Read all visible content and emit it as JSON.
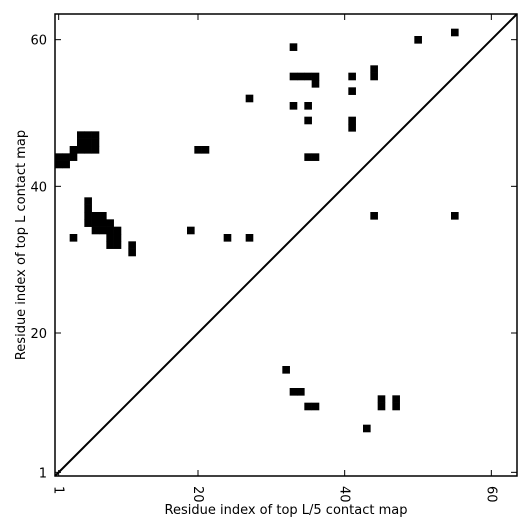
{
  "chart_data": {
    "type": "heatmap",
    "title": "",
    "xlabel": "Residue index of top L/5 contact map",
    "ylabel": "Residue index of top L contact map",
    "xlim": [
      0.5,
      63.5
    ],
    "ylim": [
      0.5,
      63.5
    ],
    "xticks": [
      1,
      20,
      40,
      60
    ],
    "yticks": [
      1,
      20,
      40,
      60
    ],
    "grid": false,
    "diagonal_line": true,
    "cell_color": "#000000",
    "background_color": "#ffffff",
    "cells": [
      [
        33,
        59
      ],
      [
        50,
        60
      ],
      [
        55,
        61
      ],
      [
        33,
        55
      ],
      [
        34,
        55
      ],
      [
        35,
        55
      ],
      [
        36,
        55
      ],
      [
        36,
        54
      ],
      [
        41,
        55
      ],
      [
        44,
        56
      ],
      [
        44,
        55
      ],
      [
        41,
        53
      ],
      [
        27,
        52
      ],
      [
        33,
        51
      ],
      [
        35,
        51
      ],
      [
        35,
        49
      ],
      [
        41,
        49
      ],
      [
        41,
        48
      ],
      [
        4,
        47
      ],
      [
        5,
        47
      ],
      [
        6,
        47
      ],
      [
        4,
        46
      ],
      [
        5,
        46
      ],
      [
        6,
        46
      ],
      [
        3,
        45
      ],
      [
        4,
        45
      ],
      [
        5,
        45
      ],
      [
        6,
        45
      ],
      [
        2,
        44
      ],
      [
        3,
        44
      ],
      [
        1,
        44
      ],
      [
        1,
        43
      ],
      [
        2,
        43
      ],
      [
        20,
        45
      ],
      [
        21,
        45
      ],
      [
        35,
        44
      ],
      [
        36,
        44
      ],
      [
        5,
        38
      ],
      [
        5,
        37
      ],
      [
        5,
        36
      ],
      [
        6,
        36
      ],
      [
        7,
        36
      ],
      [
        5,
        35
      ],
      [
        6,
        35
      ],
      [
        7,
        35
      ],
      [
        8,
        35
      ],
      [
        6,
        34
      ],
      [
        7,
        34
      ],
      [
        8,
        34
      ],
      [
        9,
        34
      ],
      [
        8,
        33
      ],
      [
        9,
        33
      ],
      [
        8,
        32
      ],
      [
        9,
        32
      ],
      [
        11,
        32
      ],
      [
        11,
        31
      ],
      [
        44,
        36
      ],
      [
        55,
        36
      ],
      [
        3,
        33
      ],
      [
        19,
        34
      ],
      [
        24,
        33
      ],
      [
        27,
        33
      ],
      [
        32,
        15
      ],
      [
        33,
        12
      ],
      [
        34,
        12
      ],
      [
        35,
        10
      ],
      [
        36,
        10
      ],
      [
        45,
        11
      ],
      [
        45,
        10
      ],
      [
        47,
        11
      ],
      [
        47,
        10
      ],
      [
        43,
        7
      ]
    ]
  }
}
